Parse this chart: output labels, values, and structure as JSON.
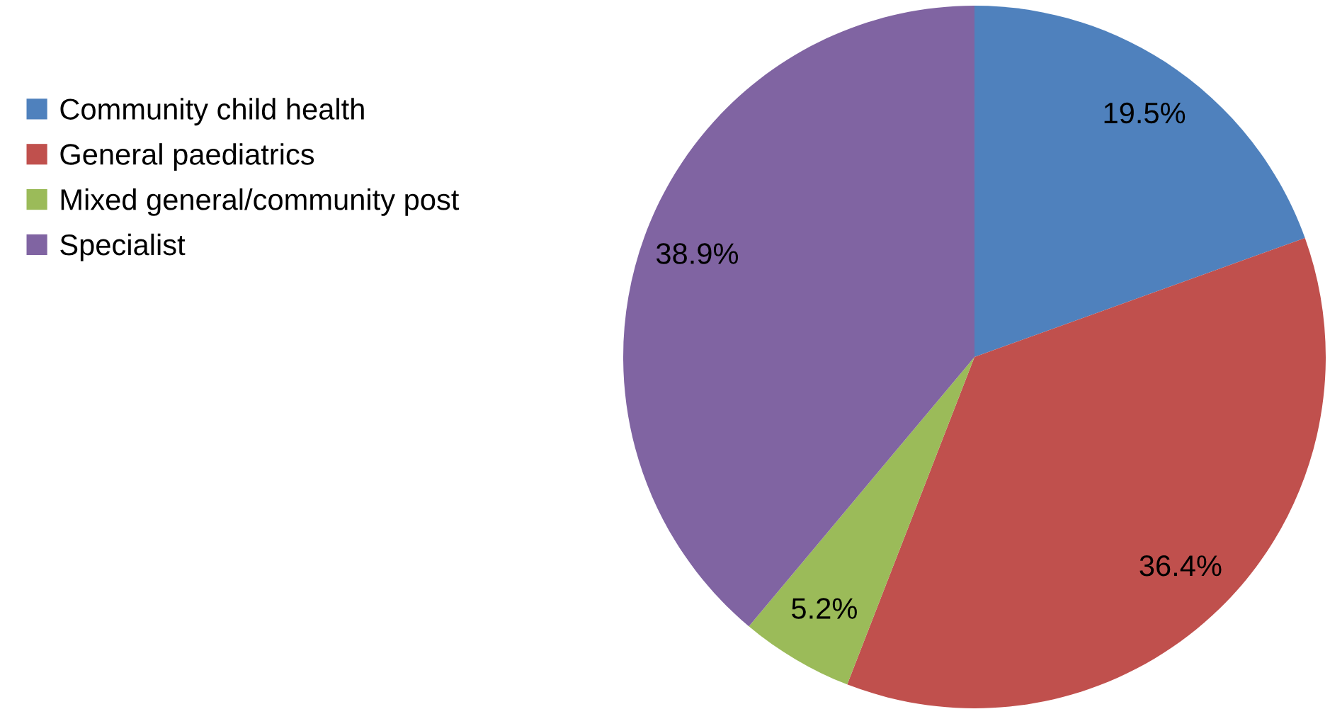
{
  "chart_data": {
    "type": "pie",
    "categories": [
      "Community child health",
      "General paediatrics",
      "Mixed general/community post",
      "Specialist"
    ],
    "values": [
      19.5,
      36.4,
      5.2,
      38.9
    ],
    "colors": [
      "#4f81bd",
      "#c0504d",
      "#9bbb59",
      "#8064a2"
    ],
    "value_labels": [
      "19.5%",
      "36.4%",
      "5.2%",
      "38.9%"
    ],
    "legend": "left"
  }
}
